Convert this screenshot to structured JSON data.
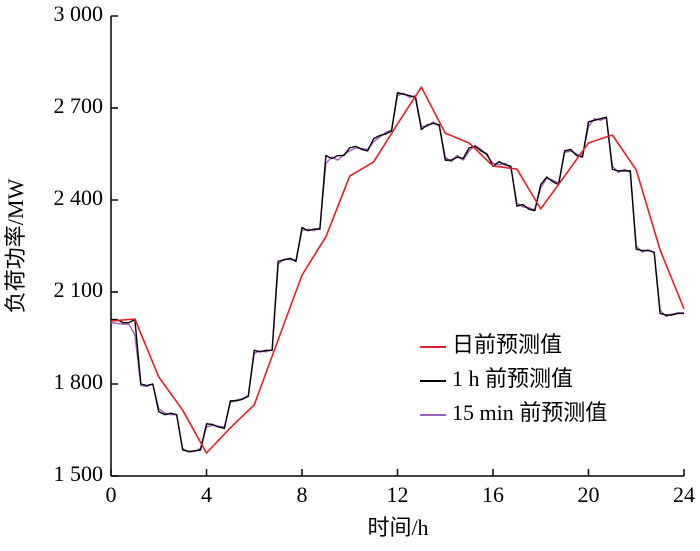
{
  "chart_data": {
    "type": "line",
    "x_label": "时间/h",
    "y_label": "负荷功率/MW",
    "xlim": [
      0,
      24
    ],
    "xticks": [
      0,
      4,
      8,
      12,
      16,
      20,
      24
    ],
    "ylim": [
      1500,
      3000
    ],
    "yticks": [
      {
        "value": 1500,
        "label": "1 500"
      },
      {
        "value": 1800,
        "label": "1 800"
      },
      {
        "value": 2100,
        "label": "2 100"
      },
      {
        "value": 2400,
        "label": "2 400"
      },
      {
        "value": 2700,
        "label": "2 700"
      },
      {
        "value": 3000,
        "label": "3 000"
      }
    ],
    "series": [
      {
        "name": "日前预测值",
        "color": "#e01f2a",
        "x": [
          0,
          1,
          2,
          3,
          4,
          5,
          6,
          7,
          8,
          9,
          10,
          11,
          12,
          13,
          14,
          15,
          16,
          17,
          18,
          19,
          20,
          21,
          22,
          23,
          24
        ],
        "values": [
          2005,
          2012,
          1823,
          1715,
          1575,
          1657,
          1732,
          1944,
          2155,
          2280,
          2478,
          2524,
          2648,
          2768,
          2618,
          2586,
          2511,
          2501,
          2371,
          2478,
          2586,
          2612,
          2498,
          2237,
          2045
        ]
      },
      {
        "name": "1 h 前预测值",
        "color": "#000000",
        "x": [
          0,
          0.25,
          0.5,
          0.75,
          1,
          1.25,
          1.5,
          1.75,
          2,
          2.25,
          2.5,
          2.75,
          3,
          3.25,
          3.5,
          3.75,
          4,
          4.25,
          4.5,
          4.75,
          5,
          5.25,
          5.5,
          5.75,
          6,
          6.25,
          6.5,
          6.75,
          7,
          7.25,
          7.5,
          7.75,
          8,
          8.25,
          8.5,
          8.75,
          9,
          9.25,
          9.5,
          9.75,
          10,
          10.25,
          10.5,
          10.75,
          11,
          11.25,
          11.5,
          11.75,
          12,
          12.25,
          12.5,
          12.75,
          13,
          13.25,
          13.5,
          13.75,
          14,
          14.25,
          14.5,
          14.75,
          15,
          15.25,
          15.5,
          15.75,
          16,
          16.25,
          16.5,
          16.75,
          17,
          17.25,
          17.5,
          17.75,
          18,
          18.25,
          18.5,
          18.75,
          19,
          19.25,
          19.5,
          19.75,
          20,
          20.25,
          20.5,
          20.75,
          21,
          21.25,
          21.5,
          21.75,
          22,
          22.25,
          22.5,
          22.75,
          23,
          23.25,
          23.5,
          23.75,
          24
        ],
        "values": [
          2010,
          2010,
          2000,
          2000,
          2010,
          1800,
          1795,
          1800,
          1710,
          1700,
          1705,
          1700,
          1585,
          1580,
          1582,
          1585,
          1670,
          1668,
          1660,
          1655,
          1745,
          1745,
          1750,
          1760,
          1910,
          1905,
          1910,
          1910,
          2200,
          2205,
          2210,
          2200,
          2310,
          2300,
          2305,
          2305,
          2545,
          2535,
          2545,
          2545,
          2570,
          2575,
          2565,
          2560,
          2600,
          2610,
          2615,
          2625,
          2750,
          2745,
          2740,
          2735,
          2630,
          2645,
          2650,
          2645,
          2530,
          2530,
          2540,
          2535,
          2570,
          2575,
          2560,
          2550,
          2510,
          2525,
          2515,
          2510,
          2380,
          2385,
          2370,
          2365,
          2450,
          2475,
          2460,
          2450,
          2560,
          2565,
          2545,
          2540,
          2655,
          2660,
          2665,
          2670,
          2500,
          2495,
          2495,
          2495,
          2240,
          2235,
          2235,
          2230,
          2030,
          2025,
          2025,
          2030,
          2030
        ]
      },
      {
        "name": "15 min 前预测值",
        "color": "#a35cc0",
        "x": [
          0,
          0.25,
          0.5,
          0.75,
          1,
          1.25,
          1.5,
          1.75,
          2,
          2.25,
          2.5,
          2.75,
          3,
          3.25,
          3.5,
          3.75,
          4,
          4.25,
          4.5,
          4.75,
          5,
          5.25,
          5.5,
          5.75,
          6,
          6.25,
          6.5,
          6.75,
          7,
          7.25,
          7.5,
          7.75,
          8,
          8.25,
          8.5,
          8.75,
          9,
          9.25,
          9.5,
          9.75,
          10,
          10.25,
          10.5,
          10.75,
          11,
          11.25,
          11.5,
          11.75,
          12,
          12.25,
          12.5,
          12.75,
          13,
          13.25,
          13.5,
          13.75,
          14,
          14.25,
          14.5,
          14.75,
          15,
          15.25,
          15.5,
          15.75,
          16,
          16.25,
          16.5,
          16.75,
          17,
          17.25,
          17.5,
          17.75,
          18,
          18.25,
          18.5,
          18.75,
          19,
          19.25,
          19.5,
          19.75,
          20,
          20.25,
          20.5,
          20.75,
          21,
          21.25,
          21.5,
          21.75,
          22,
          22.25,
          22.5,
          22.75,
          23,
          23.25,
          23.5,
          23.75,
          24
        ],
        "values": [
          2000,
          1998,
          1995,
          1995,
          1960,
          1795,
          1792,
          1800,
          1720,
          1705,
          1700,
          1700,
          1590,
          1578,
          1580,
          1590,
          1660,
          1665,
          1662,
          1660,
          1740,
          1748,
          1752,
          1762,
          1900,
          1908,
          1905,
          1912,
          2190,
          2208,
          2205,
          2205,
          2300,
          2305,
          2300,
          2310,
          2520,
          2540,
          2530,
          2548,
          2560,
          2570,
          2568,
          2565,
          2590,
          2605,
          2620,
          2628,
          2740,
          2748,
          2735,
          2740,
          2640,
          2640,
          2655,
          2640,
          2540,
          2525,
          2545,
          2530,
          2560,
          2578,
          2565,
          2545,
          2520,
          2515,
          2520,
          2505,
          2390,
          2378,
          2375,
          2368,
          2440,
          2470,
          2465,
          2455,
          2555,
          2560,
          2550,
          2545,
          2640,
          2665,
          2660,
          2668,
          2510,
          2490,
          2500,
          2490,
          2250,
          2230,
          2238,
          2228,
          2040,
          2020,
          2028,
          2032,
          2032
        ]
      }
    ]
  }
}
